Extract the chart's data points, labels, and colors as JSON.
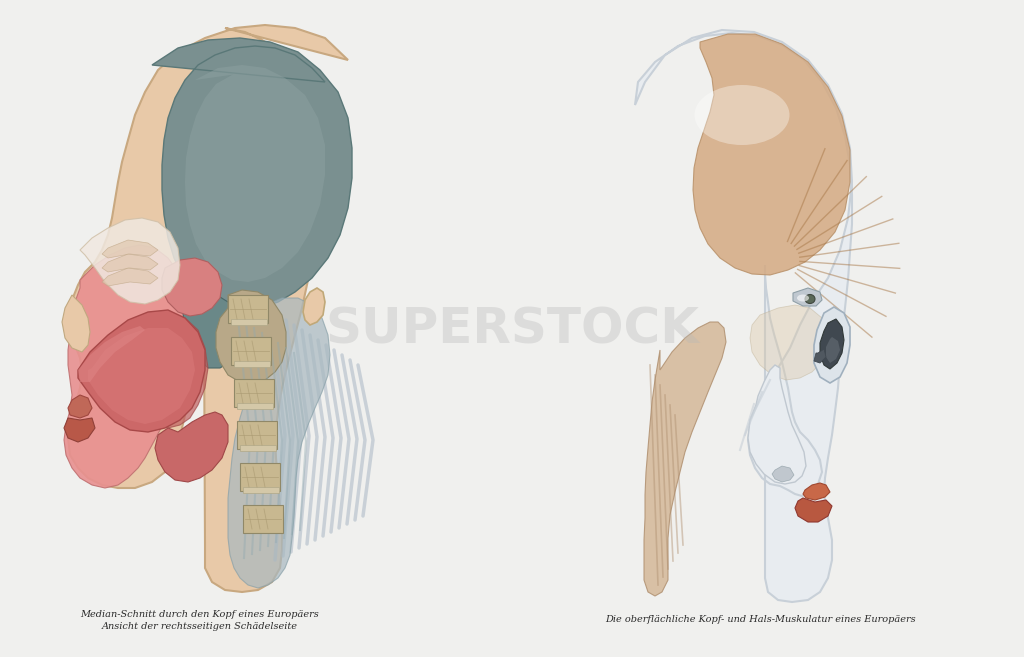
{
  "background_color": "#f0f0ee",
  "caption_left_line1": "Median-Schnitt durch den Kopf eines Europäers",
  "caption_left_line2": "Ansicht der rechtsseitigen Schädelseite",
  "caption_right_line1": "Die oberflächliche Kopf- und Hals-Muskulatur eines Europäers",
  "caption_font_size": 7.0,
  "caption_color": "#2a2a2a",
  "watermark_text": "SUPERSTOCK",
  "watermark_color": "#b8b8b8",
  "watermark_alpha": 0.35
}
